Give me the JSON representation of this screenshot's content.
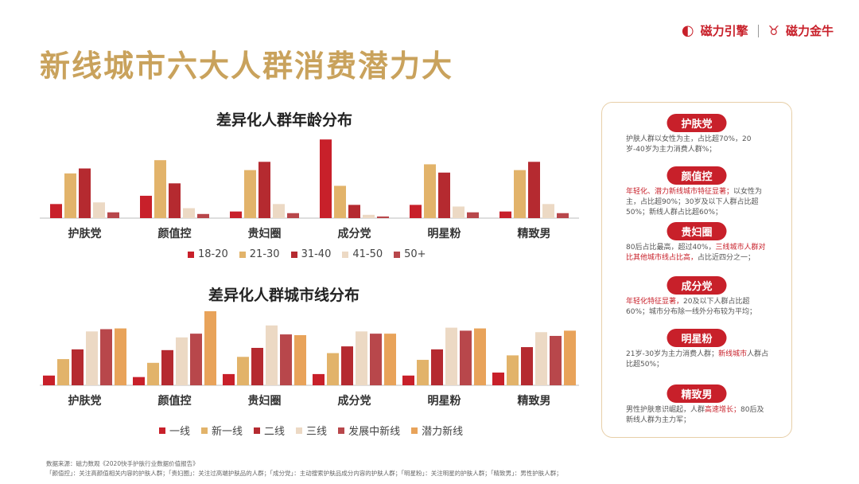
{
  "brand": {
    "logo1": "磁力引擎",
    "logo2": "磁力金牛"
  },
  "page": {
    "title": "新线城市六大人群消费潜力大"
  },
  "colors": {
    "c1": "#c8202a",
    "c2": "#e2b36a",
    "c3": "#b52a30",
    "c4": "#ecd9c4",
    "c5": "#b8474b",
    "a1": "#c8202a",
    "a2": "#e2b36a",
    "a3": "#b52a30",
    "a4": "#ecd9c4",
    "a5": "#b8474b",
    "a6": "#e8a35a"
  },
  "chart_data": [
    {
      "type": "bar",
      "title": "差异化人群年龄分布",
      "categories": [
        "护肤党",
        "颜值控",
        "贵妇圈",
        "成分党",
        "明星粉",
        "精致男"
      ],
      "series": [
        {
          "name": "18-20",
          "values": [
            17,
            27,
            8,
            95,
            16,
            8
          ]
        },
        {
          "name": "21-30",
          "values": [
            54,
            70,
            58,
            39,
            65,
            58
          ]
        },
        {
          "name": "31-40",
          "values": [
            60,
            42,
            68,
            16,
            55,
            68
          ]
        },
        {
          "name": "41-50",
          "values": [
            19,
            12,
            17,
            4,
            14,
            17
          ]
        },
        {
          "name": "50+",
          "values": [
            7,
            5,
            6,
            2,
            7,
            6
          ]
        }
      ],
      "ylim": [
        0,
        100
      ]
    },
    {
      "type": "bar",
      "title": "差异化人群城市线分布",
      "categories": [
        "护肤党",
        "颜值控",
        "贵妇圈",
        "成分党",
        "明星粉",
        "精致男"
      ],
      "series": [
        {
          "name": "一线",
          "values": [
            13,
            11,
            15,
            15,
            13,
            17
          ]
        },
        {
          "name": "新一线",
          "values": [
            35,
            30,
            38,
            43,
            34,
            40
          ]
        },
        {
          "name": "二线",
          "values": [
            48,
            47,
            50,
            52,
            48,
            51
          ]
        },
        {
          "name": "三线",
          "values": [
            72,
            64,
            80,
            72,
            77,
            71
          ]
        },
        {
          "name": "发展中新线",
          "values": [
            75,
            69,
            68,
            69,
            73,
            66
          ]
        },
        {
          "name": "潜力新线",
          "values": [
            76,
            99,
            67,
            69,
            76,
            73
          ]
        }
      ],
      "ylim": [
        0,
        100
      ]
    }
  ],
  "panel": {
    "cards": [
      {
        "tag": "护肤党",
        "desc": [
          {
            "t": "护肤人群以女性为主，占比超70%，20岁-40岁为主力消费人群%；",
            "hl": false
          }
        ]
      },
      {
        "tag": "颜值控",
        "desc": [
          {
            "t": "年轻化、潜力新线城市特征显著；",
            "hl": true
          },
          {
            "t": "以女性为主，占比超90%；30岁及以下人群占比超50%；新线人群占比超60%；",
            "hl": false
          }
        ]
      },
      {
        "tag": "贵妇圈",
        "desc": [
          {
            "t": "80后占比最高，超过40%，",
            "hl": false
          },
          {
            "t": "三线城市人群对比其他城市线占比高，",
            "hl": true
          },
          {
            "t": "占比近四分之一；",
            "hl": false
          }
        ]
      },
      {
        "tag": "成分党",
        "desc": [
          {
            "t": "年轻化特征显著，",
            "hl": true
          },
          {
            "t": "20及以下人群占比超60%；城市分布除一线外分布较为平均；",
            "hl": false
          }
        ]
      },
      {
        "tag": "明星粉",
        "desc": [
          {
            "t": "21岁-30岁为主力消费人群；",
            "hl": false
          },
          {
            "t": "新线城市",
            "hl": true
          },
          {
            "t": "人群占比超50%；",
            "hl": false
          }
        ]
      },
      {
        "tag": "精致男",
        "desc": [
          {
            "t": "男性护肤意识崛起，人群",
            "hl": false
          },
          {
            "t": "高速增长；",
            "hl": true
          },
          {
            "t": "80后及新线人群为主力军；",
            "hl": false
          }
        ]
      }
    ]
  },
  "footnote": {
    "line1": "数据来源：磁力数观《2020快手护肤行业数据价值报告》",
    "line2": "「颜值控」：关注高颜值相关内容的护肤人群；「贵妇圈」：关注过高端护肤品的人群；「成分党」：主动搜索护肤品成分内容的护肤人群；「明星粉」：关注明星的护肤人群；「精致男」：男性护肤人群；"
  }
}
